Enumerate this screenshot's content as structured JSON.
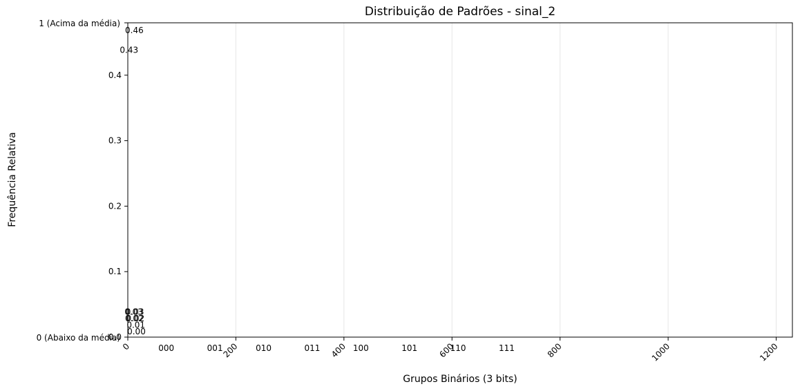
{
  "chart_data": {
    "type": "bar",
    "title": "Distribuição de Padrões - sinal_2",
    "xlabel": "Grupos Binários (3 bits)",
    "ylabel": "Frequência Relativa",
    "x_ticks": [
      "0",
      "200",
      "400",
      "600",
      "800",
      "1000",
      "1200"
    ],
    "xlim": [
      0,
      1230
    ],
    "categories": [
      "000",
      "001",
      "010",
      "011",
      "100",
      "101",
      "110",
      "111"
    ],
    "category_positions": [
      70,
      160,
      250,
      340,
      430,
      520,
      610,
      700
    ],
    "y_ticks": [
      "0.1",
      "0.2",
      "0.3",
      "0.4"
    ],
    "ylim": [
      0,
      0.48
    ],
    "state_labels": {
      "low": "0 (Abaixo da média)",
      "high": "1 (Acima da média)"
    },
    "value_labels": [
      "0.46",
      "0.43",
      "0.03",
      "0.02",
      "0.03",
      "0.02",
      "0.01",
      "0.00"
    ],
    "values": [
      0.46,
      0.43,
      0.03,
      0.02,
      0.03,
      0.02,
      0.01,
      0.0
    ],
    "grid": "x",
    "colors": {
      "axes": "#000000",
      "grid": "#e6e6e6",
      "text": "#000000"
    }
  }
}
